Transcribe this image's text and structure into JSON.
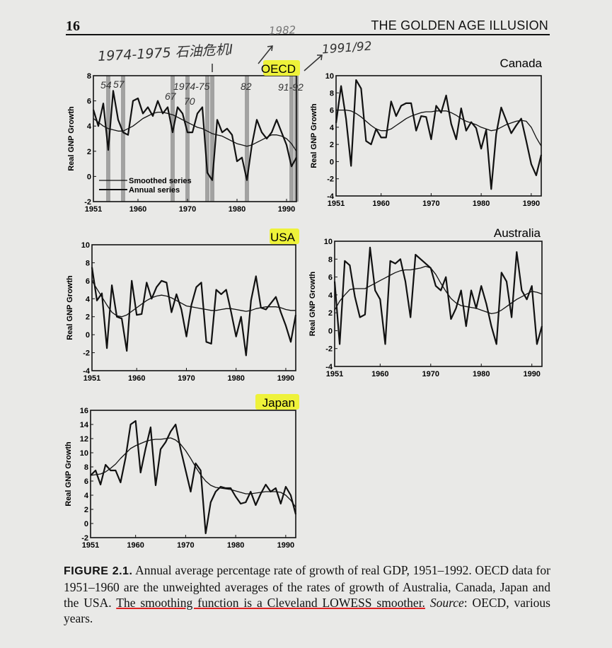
{
  "page": {
    "page_number": "16",
    "running_head": "THE GOLDEN AGE ILLUSION"
  },
  "annotations": {
    "note_crisis": "1974-1975 石油危机I",
    "note_1982": "1982",
    "note_1991": "1991/92"
  },
  "caption": {
    "label": "FIGURE 2.1.",
    "text1": "Annual average percentage rate of growth of real GDP, 1951–1992. OECD data for 1951–1960 are the unweighted averages of the rates of growth of Australia, Canada, Japan and the USA.",
    "text2": "The smoothing function is a Cleveland LOWESS smoother.",
    "text3": "Source",
    "text4": ": OECD, various years."
  },
  "chart_data": [
    {
      "type": "line",
      "title": "OECD",
      "highlight_color": "#eef23a",
      "ylabel": "Real GNP Growth",
      "xlim": [
        1951,
        1992
      ],
      "ylim": [
        -2,
        8
      ],
      "yticks": [
        -2,
        0,
        2,
        4,
        6,
        8
      ],
      "xticks": [
        1951,
        1960,
        1970,
        1980,
        1990
      ],
      "legend": [
        "Smoothed series",
        "Annual series"
      ],
      "legend_position": "bottom-left",
      "shaded_years": [
        1954,
        1957,
        1967,
        1970,
        1974,
        1975,
        1982,
        1991,
        1992
      ],
      "handwritten_year_labels": [
        "54",
        "57",
        "67",
        "70",
        "1974-75",
        "82",
        "91-92"
      ],
      "x": [
        1951,
        1952,
        1953,
        1954,
        1955,
        1956,
        1957,
        1958,
        1959,
        1960,
        1961,
        1962,
        1963,
        1964,
        1965,
        1966,
        1967,
        1968,
        1969,
        1970,
        1971,
        1972,
        1973,
        1974,
        1975,
        1976,
        1977,
        1978,
        1979,
        1980,
        1981,
        1982,
        1983,
        1984,
        1985,
        1986,
        1987,
        1988,
        1989,
        1990,
        1991,
        1992
      ],
      "series": [
        {
          "name": "Annual series",
          "values": [
            5.3,
            4.0,
            5.8,
            2.1,
            6.8,
            4.5,
            3.5,
            3.3,
            6.0,
            6.2,
            5.0,
            5.5,
            4.8,
            6.0,
            5.0,
            5.5,
            3.5,
            5.5,
            5.0,
            3.5,
            3.5,
            5.0,
            5.5,
            0.3,
            -0.3,
            4.5,
            3.5,
            3.8,
            3.3,
            1.2,
            1.5,
            -0.3,
            2.5,
            4.5,
            3.5,
            3.0,
            3.5,
            4.5,
            3.5,
            2.5,
            0.8,
            1.5
          ]
        },
        {
          "name": "Smoothed series",
          "values": [
            4.6,
            4.3,
            4.0,
            3.8,
            3.7,
            3.6,
            3.6,
            3.8,
            4.0,
            4.3,
            4.6,
            4.8,
            5.0,
            5.1,
            5.1,
            5.0,
            4.9,
            4.7,
            4.5,
            4.3,
            4.1,
            3.9,
            3.8,
            3.6,
            3.4,
            3.3,
            3.2,
            3.0,
            2.8,
            2.6,
            2.5,
            2.4,
            2.5,
            2.7,
            2.9,
            3.1,
            3.3,
            3.3,
            3.2,
            3.0,
            2.6,
            2.0
          ]
        }
      ]
    },
    {
      "type": "line",
      "title": "Canada",
      "ylabel": "Real GNP Growth",
      "xlim": [
        1951,
        1992
      ],
      "ylim": [
        -4,
        10
      ],
      "yticks": [
        -4,
        -2,
        0,
        2,
        4,
        6,
        8,
        10
      ],
      "xticks": [
        1951,
        1960,
        1970,
        1980,
        1990
      ],
      "x": [
        1951,
        1952,
        1953,
        1954,
        1955,
        1956,
        1957,
        1958,
        1959,
        1960,
        1961,
        1962,
        1963,
        1964,
        1965,
        1966,
        1967,
        1968,
        1969,
        1970,
        1971,
        1972,
        1973,
        1974,
        1975,
        1976,
        1977,
        1978,
        1979,
        1980,
        1981,
        1982,
        1983,
        1984,
        1985,
        1986,
        1987,
        1988,
        1989,
        1990,
        1991,
        1992
      ],
      "series": [
        {
          "name": "Annual series",
          "values": [
            4.5,
            8.8,
            5.0,
            -0.5,
            9.5,
            8.5,
            2.4,
            2.0,
            3.8,
            2.8,
            2.8,
            7.0,
            5.3,
            6.5,
            6.8,
            6.8,
            3.6,
            5.3,
            5.2,
            2.6,
            6.5,
            5.7,
            7.7,
            4.4,
            2.6,
            6.2,
            3.6,
            4.6,
            3.9,
            1.5,
            3.7,
            -3.2,
            3.2,
            6.3,
            4.8,
            3.3,
            4.2,
            5.0,
            2.4,
            -0.3,
            -1.6,
            0.8
          ]
        },
        {
          "name": "Smoothed series",
          "values": [
            6.0,
            6.0,
            6.0,
            5.9,
            5.6,
            5.2,
            4.7,
            4.2,
            3.8,
            3.6,
            3.6,
            3.8,
            4.2,
            4.6,
            5.0,
            5.3,
            5.5,
            5.7,
            5.8,
            5.8,
            5.9,
            5.9,
            5.9,
            5.7,
            5.4,
            5.0,
            4.7,
            4.5,
            4.3,
            4.0,
            3.8,
            3.6,
            3.7,
            4.0,
            4.3,
            4.5,
            4.7,
            4.8,
            4.7,
            4.0,
            2.8,
            1.8
          ]
        }
      ]
    },
    {
      "type": "line",
      "title": "USA",
      "highlight_color": "#eef23a",
      "ylabel": "Real GNP Growth",
      "xlim": [
        1951,
        1992
      ],
      "ylim": [
        -4,
        10
      ],
      "yticks": [
        -4,
        -2,
        0,
        2,
        4,
        6,
        8,
        10
      ],
      "xticks": [
        1951,
        1960,
        1970,
        1980,
        1990
      ],
      "x": [
        1951,
        1952,
        1953,
        1954,
        1955,
        1956,
        1957,
        1958,
        1959,
        1960,
        1961,
        1962,
        1963,
        1964,
        1965,
        1966,
        1967,
        1968,
        1969,
        1970,
        1971,
        1972,
        1973,
        1974,
        1975,
        1976,
        1977,
        1978,
        1979,
        1980,
        1981,
        1982,
        1983,
        1984,
        1985,
        1986,
        1987,
        1988,
        1989,
        1990,
        1991,
        1992
      ],
      "series": [
        {
          "name": "Annual series",
          "values": [
            7.5,
            3.8,
            4.6,
            -1.5,
            5.5,
            2.0,
            1.8,
            -1.8,
            6.0,
            2.2,
            2.3,
            5.8,
            4.0,
            5.3,
            6.0,
            5.8,
            2.5,
            4.5,
            2.8,
            -0.2,
            3.3,
            5.3,
            5.8,
            -0.8,
            -1.0,
            5.0,
            4.5,
            5.0,
            2.5,
            -0.2,
            2.0,
            -2.3,
            3.8,
            6.5,
            3.0,
            2.8,
            3.5,
            4.2,
            2.5,
            1.0,
            -0.8,
            2.2
          ]
        },
        {
          "name": "Smoothed series",
          "values": [
            6.0,
            5.1,
            4.2,
            3.3,
            2.5,
            2.1,
            2.0,
            2.2,
            2.6,
            3.0,
            3.4,
            3.8,
            4.1,
            4.3,
            4.4,
            4.3,
            4.1,
            3.8,
            3.5,
            3.2,
            3.1,
            3.0,
            2.9,
            2.8,
            2.7,
            2.7,
            2.8,
            2.9,
            2.9,
            2.8,
            2.7,
            2.6,
            2.7,
            2.9,
            3.0,
            3.1,
            3.1,
            3.1,
            3.0,
            2.8,
            2.7,
            2.7
          ]
        }
      ]
    },
    {
      "type": "line",
      "title": "Australia",
      "ylabel": "Real GNP Growth",
      "xlim": [
        1951,
        1992
      ],
      "ylim": [
        -4,
        10
      ],
      "yticks": [
        -4,
        -2,
        0,
        2,
        4,
        6,
        8,
        10
      ],
      "xticks": [
        1951,
        1960,
        1970,
        1980,
        1990
      ],
      "x": [
        1951,
        1952,
        1953,
        1954,
        1955,
        1956,
        1957,
        1958,
        1959,
        1960,
        1961,
        1962,
        1963,
        1964,
        1965,
        1966,
        1967,
        1968,
        1969,
        1970,
        1971,
        1972,
        1973,
        1974,
        1975,
        1976,
        1977,
        1978,
        1979,
        1980,
        1981,
        1982,
        1983,
        1984,
        1985,
        1986,
        1987,
        1988,
        1989,
        1990,
        1991,
        1992
      ],
      "series": [
        {
          "name": "Annual series",
          "values": [
            5.5,
            -1.5,
            7.8,
            7.3,
            3.8,
            1.5,
            1.8,
            9.3,
            4.5,
            3.5,
            -1.5,
            7.8,
            7.5,
            8.0,
            5.5,
            1.5,
            8.5,
            8.0,
            7.5,
            7.0,
            5.0,
            4.5,
            6.0,
            1.3,
            2.5,
            4.5,
            0.5,
            4.5,
            2.5,
            5.0,
            3.0,
            0.5,
            -1.5,
            6.5,
            5.5,
            1.5,
            8.8,
            4.5,
            3.5,
            5.0,
            -1.5,
            0.5
          ]
        },
        {
          "name": "Smoothed series",
          "values": [
            2.3,
            3.3,
            4.0,
            4.6,
            4.7,
            4.7,
            4.7,
            5.0,
            5.3,
            5.6,
            5.9,
            6.2,
            6.5,
            6.7,
            6.8,
            6.8,
            6.9,
            7.0,
            7.2,
            7.0,
            6.3,
            5.3,
            4.4,
            3.6,
            3.1,
            2.8,
            2.7,
            2.6,
            2.5,
            2.3,
            2.1,
            1.9,
            2.0,
            2.3,
            2.7,
            3.1,
            3.5,
            3.8,
            4.1,
            4.4,
            4.3,
            4.1
          ]
        }
      ]
    },
    {
      "type": "line",
      "title": "Japan",
      "highlight_color": "#eef23a",
      "ylabel": "Real GNP Growth",
      "xlim": [
        1951,
        1992
      ],
      "ylim": [
        -2,
        16
      ],
      "yticks": [
        -2,
        0,
        2,
        4,
        6,
        8,
        10,
        12,
        14,
        16
      ],
      "xticks": [
        1951,
        1960,
        1970,
        1980,
        1990
      ],
      "x": [
        1951,
        1952,
        1953,
        1954,
        1955,
        1956,
        1957,
        1958,
        1959,
        1960,
        1961,
        1962,
        1963,
        1964,
        1965,
        1966,
        1967,
        1968,
        1969,
        1970,
        1971,
        1972,
        1973,
        1974,
        1975,
        1976,
        1977,
        1978,
        1979,
        1980,
        1981,
        1982,
        1983,
        1984,
        1985,
        1986,
        1987,
        1988,
        1989,
        1990,
        1991,
        1992
      ],
      "series": [
        {
          "name": "Annual series",
          "values": [
            6.8,
            7.5,
            5.5,
            8.3,
            7.5,
            7.5,
            5.8,
            9.3,
            14.0,
            14.5,
            7.2,
            10.6,
            13.6,
            5.4,
            10.5,
            11.5,
            13.0,
            14.0,
            10.5,
            7.5,
            4.5,
            8.5,
            7.5,
            -1.4,
            3.0,
            4.5,
            5.2,
            5.0,
            5.0,
            3.8,
            2.8,
            3.0,
            4.5,
            2.6,
            4.2,
            5.5,
            4.5,
            5.0,
            2.8,
            5.2,
            4.0,
            1.3
          ]
        },
        {
          "name": "Smoothed series",
          "values": [
            6.8,
            6.9,
            7.0,
            7.3,
            7.8,
            8.4,
            9.2,
            9.9,
            10.6,
            11.0,
            11.3,
            11.6,
            11.8,
            11.9,
            11.9,
            12.0,
            12.1,
            11.8,
            11.2,
            10.3,
            9.2,
            8.0,
            6.9,
            6.0,
            5.4,
            5.1,
            5.0,
            4.9,
            4.8,
            4.6,
            4.4,
            4.2,
            4.2,
            4.3,
            4.4,
            4.5,
            4.5,
            4.5,
            4.4,
            4.0,
            3.3,
            2.3
          ]
        }
      ]
    }
  ]
}
